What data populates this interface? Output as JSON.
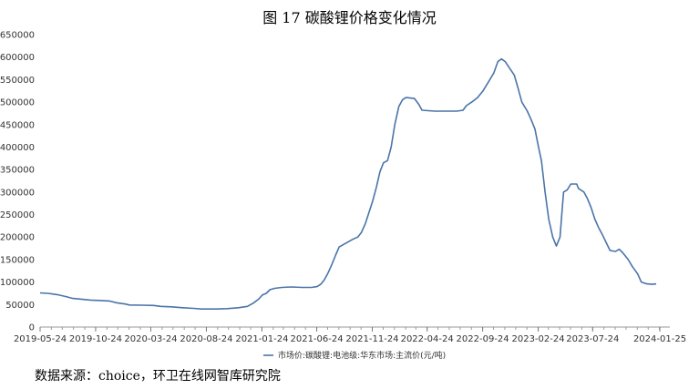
{
  "chart_data": {
    "type": "line",
    "title": "图 17 碳酸锂价格变化情况",
    "ylim": [
      0,
      650000
    ],
    "y_ticks": [
      0,
      50000,
      100000,
      150000,
      200000,
      250000,
      300000,
      350000,
      400000,
      450000,
      500000,
      550000,
      600000,
      650000
    ],
    "x_ticks": [
      "2019-05-24",
      "2019-10-24",
      "2020-03-24",
      "2020-08-24",
      "2021-01-24",
      "2021-06-24",
      "2021-11-24",
      "2022-04-24",
      "2022-09-24",
      "2023-02-24",
      "2023-07-24",
      "2024-01-25"
    ],
    "grid": false,
    "legend_position": "bottom",
    "series": [
      {
        "name": "市场价:碳酸锂:电池级:华东市场:主流价(元/吨)",
        "color": "#4a74a8",
        "points": [
          [
            "2019-05-24",
            76000
          ],
          [
            "2019-06-15",
            75000
          ],
          [
            "2019-07-10",
            72000
          ],
          [
            "2019-08-01",
            68000
          ],
          [
            "2019-08-20",
            64000
          ],
          [
            "2019-09-15",
            62000
          ],
          [
            "2019-10-10",
            60000
          ],
          [
            "2019-11-10",
            59000
          ],
          [
            "2019-12-01",
            58000
          ],
          [
            "2019-12-20",
            54000
          ],
          [
            "2020-01-15",
            51000
          ],
          [
            "2020-01-25",
            49000
          ],
          [
            "2020-03-01",
            48500
          ],
          [
            "2020-04-01",
            48000
          ],
          [
            "2020-04-20",
            46000
          ],
          [
            "2020-05-20",
            45000
          ],
          [
            "2020-06-20",
            43000
          ],
          [
            "2020-07-20",
            41500
          ],
          [
            "2020-08-10",
            40000
          ],
          [
            "2020-09-20",
            40000
          ],
          [
            "2020-10-20",
            41000
          ],
          [
            "2020-11-20",
            43000
          ],
          [
            "2020-12-15",
            46000
          ],
          [
            "2020-12-31",
            53000
          ],
          [
            "2021-01-15",
            62000
          ],
          [
            "2021-01-25",
            71000
          ],
          [
            "2021-02-05",
            75000
          ],
          [
            "2021-02-15",
            83000
          ],
          [
            "2021-02-28",
            86000
          ],
          [
            "2021-03-20",
            88000
          ],
          [
            "2021-04-15",
            89000
          ],
          [
            "2021-05-15",
            88000
          ],
          [
            "2021-06-10",
            88000
          ],
          [
            "2021-06-25",
            90000
          ],
          [
            "2021-07-05",
            95000
          ],
          [
            "2021-07-15",
            105000
          ],
          [
            "2021-07-25",
            120000
          ],
          [
            "2021-08-05",
            140000
          ],
          [
            "2021-08-15",
            160000
          ],
          [
            "2021-08-25",
            178000
          ],
          [
            "2021-09-05",
            183000
          ],
          [
            "2021-09-20",
            190000
          ],
          [
            "2021-10-01",
            195000
          ],
          [
            "2021-10-15",
            200000
          ],
          [
            "2021-10-25",
            210000
          ],
          [
            "2021-11-05",
            230000
          ],
          [
            "2021-11-15",
            255000
          ],
          [
            "2021-11-25",
            280000
          ],
          [
            "2021-12-05",
            310000
          ],
          [
            "2021-12-15",
            345000
          ],
          [
            "2021-12-25",
            365000
          ],
          [
            "2022-01-05",
            370000
          ],
          [
            "2022-01-15",
            400000
          ],
          [
            "2022-01-25",
            450000
          ],
          [
            "2022-02-05",
            490000
          ],
          [
            "2022-02-15",
            505000
          ],
          [
            "2022-02-25",
            510000
          ],
          [
            "2022-03-20",
            508000
          ],
          [
            "2022-04-01",
            495000
          ],
          [
            "2022-04-10",
            482000
          ],
          [
            "2022-05-15",
            480000
          ],
          [
            "2022-06-15",
            480000
          ],
          [
            "2022-07-15",
            480000
          ],
          [
            "2022-08-01",
            482000
          ],
          [
            "2022-08-10",
            492000
          ],
          [
            "2022-08-25",
            500000
          ],
          [
            "2022-09-10",
            510000
          ],
          [
            "2022-09-25",
            525000
          ],
          [
            "2022-10-10",
            545000
          ],
          [
            "2022-10-25",
            565000
          ],
          [
            "2022-11-05",
            590000
          ],
          [
            "2022-11-15",
            596000
          ],
          [
            "2022-11-25",
            590000
          ],
          [
            "2022-12-05",
            578000
          ],
          [
            "2022-12-20",
            560000
          ],
          [
            "2022-12-31",
            530000
          ],
          [
            "2023-01-10",
            500000
          ],
          [
            "2023-01-25",
            480000
          ],
          [
            "2023-02-05",
            460000
          ],
          [
            "2023-02-15",
            440000
          ],
          [
            "2023-02-25",
            400000
          ],
          [
            "2023-03-05",
            370000
          ],
          [
            "2023-03-15",
            300000
          ],
          [
            "2023-03-25",
            240000
          ],
          [
            "2023-04-05",
            200000
          ],
          [
            "2023-04-15",
            180000
          ],
          [
            "2023-04-25",
            200000
          ],
          [
            "2023-05-01",
            260000
          ],
          [
            "2023-05-05",
            300000
          ],
          [
            "2023-05-15",
            305000
          ],
          [
            "2023-05-25",
            318000
          ],
          [
            "2023-06-10",
            318000
          ],
          [
            "2023-06-15",
            308000
          ],
          [
            "2023-06-30",
            300000
          ],
          [
            "2023-07-10",
            285000
          ],
          [
            "2023-07-20",
            265000
          ],
          [
            "2023-07-30",
            240000
          ],
          [
            "2023-08-10",
            220000
          ],
          [
            "2023-08-20",
            205000
          ],
          [
            "2023-09-01",
            185000
          ],
          [
            "2023-09-10",
            170000
          ],
          [
            "2023-09-25",
            168000
          ],
          [
            "2023-10-05",
            173000
          ],
          [
            "2023-10-15",
            165000
          ],
          [
            "2023-10-30",
            150000
          ],
          [
            "2023-11-10",
            135000
          ],
          [
            "2023-11-25",
            118000
          ],
          [
            "2023-12-05",
            100000
          ],
          [
            "2023-12-20",
            96000
          ],
          [
            "2024-01-05",
            95000
          ],
          [
            "2024-01-15",
            96000
          ]
        ]
      }
    ]
  },
  "source_note": "数据来源：choice，环卫在线网智库研究院"
}
